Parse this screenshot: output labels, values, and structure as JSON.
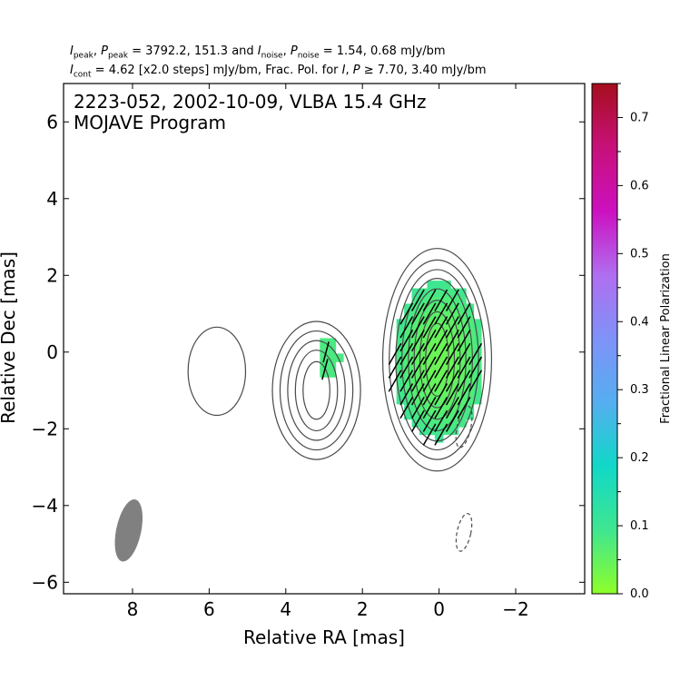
{
  "header": {
    "line1": {
      "ipeak_sym": "I",
      "ipeak_sub": "peak",
      "ppeak_sym": "P",
      "ppeak_sub": "peak",
      "peak_values": "= 3792.2, 151.3 and",
      "inoise_sym": "I",
      "inoise_sub": "noise",
      "pnoise_sym": "P",
      "pnoise_sub": "noise",
      "noise_values": "= 1.54, 0.68 mJy/bm"
    },
    "line2": {
      "icont_sym": "I",
      "icont_sub": "cont",
      "cont_text": "= 4.62 [x2.0 steps] mJy/bm, Frac. Pol. for",
      "i_sym": "I",
      "p_sym": "P",
      "thresh_text": "≥  7.70, 3.40 mJy/bm"
    }
  },
  "chart_data": {
    "type": "contour",
    "title_line1": "2223-052, 2002-10-09, VLBA 15.4 GHz",
    "title_line2": "MOJAVE Program",
    "xlabel": "Relative RA [mas]",
    "ylabel": "Relative Dec [mas]",
    "xlim": [
      9.8,
      -3.8
    ],
    "ylim": [
      -6.3,
      7.0
    ],
    "xticks": [
      8,
      6,
      4,
      2,
      0,
      -2
    ],
    "xtick_labels": [
      "8",
      "6",
      "4",
      "2",
      "0",
      "−2"
    ],
    "yticks": [
      -6,
      -4,
      -2,
      0,
      2,
      4,
      6
    ],
    "ytick_labels": [
      "−6",
      "−4",
      "−2",
      "0",
      "2",
      "4",
      "6"
    ],
    "colorbar": {
      "label": "Fractional Linear Polarization",
      "range": [
        0.0,
        0.75
      ],
      "ticks": [
        0.0,
        0.1,
        0.2,
        0.3,
        0.4,
        0.5,
        0.6,
        0.7
      ],
      "tick_labels": [
        "0.0",
        "0.1",
        "0.2",
        "0.3",
        "0.4",
        "0.5",
        "0.6",
        "0.7"
      ],
      "stops": [
        "#8dff2a",
        "#3fe690",
        "#10d8c8",
        "#55aef0",
        "#7f92f8",
        "#b06ef0",
        "#cc10c0",
        "#c8107a",
        "#a50e1c"
      ]
    },
    "contour_color": "#4a4a4a",
    "negative_contour": {
      "center": [
        -0.65,
        -4.7
      ],
      "rx": 0.18,
      "ry": 0.5
    },
    "negative_contour_2": {
      "center": [
        -0.65,
        -1.95
      ],
      "rx": 0.18,
      "ry": 0.55
    },
    "beam": {
      "center": [
        8.1,
        -4.65
      ],
      "major": 1.65,
      "minor": 0.65,
      "pa_deg": 12,
      "color": "#808080"
    },
    "components": [
      {
        "name": "core",
        "center": [
          0.05,
          -0.2
        ],
        "levels": [
          {
            "rx": 0.3,
            "ry": 0.95
          },
          {
            "rx": 0.45,
            "ry": 1.25
          },
          {
            "rx": 0.6,
            "ry": 1.55
          },
          {
            "rx": 0.75,
            "ry": 1.85
          },
          {
            "rx": 0.92,
            "ry": 2.12
          },
          {
            "rx": 1.08,
            "ry": 2.35
          },
          {
            "rx": 1.25,
            "ry": 2.6
          },
          {
            "rx": 1.42,
            "ry": 2.9
          }
        ]
      },
      {
        "name": "jet",
        "center": [
          3.2,
          -1.0
        ],
        "levels": [
          {
            "rx": 0.35,
            "ry": 0.75
          },
          {
            "rx": 0.55,
            "ry": 1.05
          },
          {
            "rx": 0.75,
            "ry": 1.3
          },
          {
            "rx": 0.95,
            "ry": 1.55
          },
          {
            "rx": 1.15,
            "ry": 1.8
          }
        ]
      },
      {
        "name": "outer",
        "center": [
          5.8,
          -0.5
        ],
        "levels": [
          {
            "rx": 0.75,
            "ry": 1.15
          }
        ]
      }
    ],
    "polarization": {
      "core_blob": {
        "center": [
          0.1,
          -0.3
        ],
        "rx": 1.2,
        "ry": 2.05,
        "frac_core": 0.04,
        "frac_edge": 0.1
      },
      "jet_patch": {
        "center": [
          2.95,
          -0.25
        ],
        "rx": 0.25,
        "ry": 0.6,
        "frac": 0.08
      },
      "evpa_deg": 30,
      "jet_evpa_deg": 15
    }
  }
}
